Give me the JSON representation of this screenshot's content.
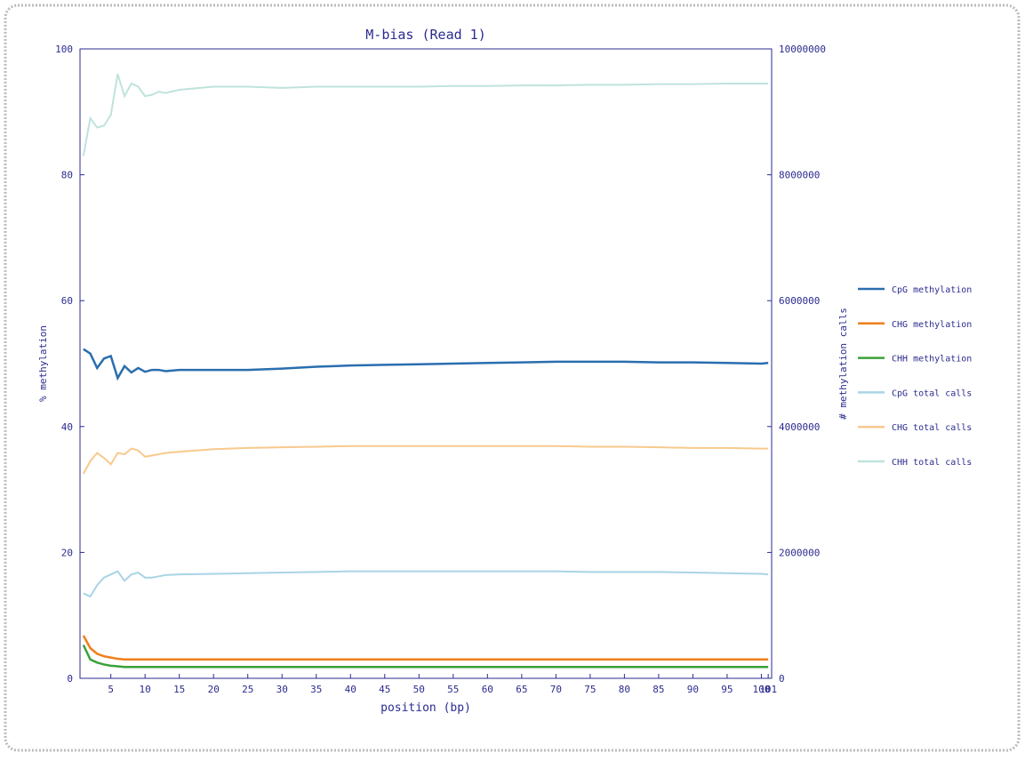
{
  "chart_data": {
    "type": "line",
    "title": "M-bias (Read 1)",
    "x_label": "position (bp)",
    "y_label": "% methylation",
    "y2_label": "# methylation calls",
    "x": [
      1,
      2,
      3,
      4,
      5,
      6,
      7,
      8,
      9,
      10,
      11,
      12,
      13,
      15,
      20,
      25,
      30,
      35,
      40,
      45,
      50,
      55,
      60,
      65,
      70,
      75,
      80,
      85,
      90,
      95,
      100,
      101
    ],
    "xlim": [
      0.5,
      101.5
    ],
    "xticks": [
      5,
      10,
      15,
      20,
      25,
      30,
      35,
      40,
      45,
      50,
      55,
      60,
      65,
      70,
      75,
      80,
      85,
      90,
      95,
      100,
      101
    ],
    "ylim": [
      0,
      100
    ],
    "yticks": [
      0,
      20,
      40,
      60,
      80,
      100
    ],
    "y2lim": [
      0,
      10000000
    ],
    "y2ticks": [
      0,
      2000000,
      4000000,
      6000000,
      8000000,
      10000000
    ],
    "legend": "right",
    "series": [
      {
        "name": "CpG methylation",
        "color": "#2a6eaf",
        "values": [
          52.3,
          51.6,
          49.3,
          50.8,
          51.2,
          47.7,
          49.6,
          48.6,
          49.3,
          48.7,
          49.0,
          49.0,
          48.8,
          49.0,
          49.0,
          49.0,
          49.2,
          49.5,
          49.7,
          49.8,
          49.9,
          50.0,
          50.1,
          50.2,
          50.3,
          50.3,
          50.3,
          50.2,
          50.2,
          50.1,
          50.0,
          50.1
        ]
      },
      {
        "name": "CHG methylation",
        "color": "#ef7f1a",
        "values": [
          6.8,
          4.8,
          3.9,
          3.5,
          3.3,
          3.1,
          3.0,
          3.0,
          3.0,
          3.0,
          3.0,
          3.0,
          3.0,
          3.0,
          3.0,
          3.0,
          3.0,
          3.0,
          3.0,
          3.0,
          3.0,
          3.0,
          3.0,
          3.0,
          3.0,
          3.0,
          3.0,
          3.0,
          3.0,
          3.0,
          3.0,
          3.0
        ]
      },
      {
        "name": "CHH methylation",
        "color": "#3aa13a",
        "values": [
          5.3,
          3.0,
          2.5,
          2.2,
          2.0,
          1.9,
          1.8,
          1.8,
          1.8,
          1.8,
          1.8,
          1.8,
          1.8,
          1.8,
          1.8,
          1.8,
          1.8,
          1.8,
          1.8,
          1.8,
          1.8,
          1.8,
          1.8,
          1.8,
          1.8,
          1.8,
          1.8,
          1.8,
          1.8,
          1.8,
          1.8,
          1.8
        ]
      },
      {
        "name": "CpG total calls",
        "color": "#a9d4e6",
        "axis": "y2",
        "values": [
          1350000,
          1300000,
          1480000,
          1600000,
          1650000,
          1700000,
          1550000,
          1650000,
          1680000,
          1600000,
          1600000,
          1620000,
          1640000,
          1650000,
          1660000,
          1670000,
          1680000,
          1690000,
          1700000,
          1700000,
          1700000,
          1700000,
          1700000,
          1700000,
          1700000,
          1690000,
          1690000,
          1690000,
          1680000,
          1670000,
          1660000,
          1650000
        ]
      },
      {
        "name": "CHG total calls",
        "color": "#f8c98e",
        "axis": "y2",
        "values": [
          3250000,
          3450000,
          3580000,
          3500000,
          3400000,
          3580000,
          3560000,
          3650000,
          3620000,
          3520000,
          3540000,
          3560000,
          3580000,
          3600000,
          3640000,
          3660000,
          3670000,
          3680000,
          3690000,
          3690000,
          3690000,
          3690000,
          3690000,
          3690000,
          3690000,
          3680000,
          3680000,
          3670000,
          3660000,
          3660000,
          3650000,
          3650000
        ]
      },
      {
        "name": "CHH total calls",
        "color": "#bfe3dc",
        "axis": "y2",
        "values": [
          8300000,
          8900000,
          8750000,
          8780000,
          8950000,
          9600000,
          9250000,
          9450000,
          9400000,
          9250000,
          9270000,
          9320000,
          9300000,
          9350000,
          9400000,
          9400000,
          9380000,
          9400000,
          9400000,
          9400000,
          9400000,
          9410000,
          9410000,
          9420000,
          9420000,
          9430000,
          9430000,
          9440000,
          9440000,
          9450000,
          9450000,
          9450000
        ]
      }
    ]
  }
}
